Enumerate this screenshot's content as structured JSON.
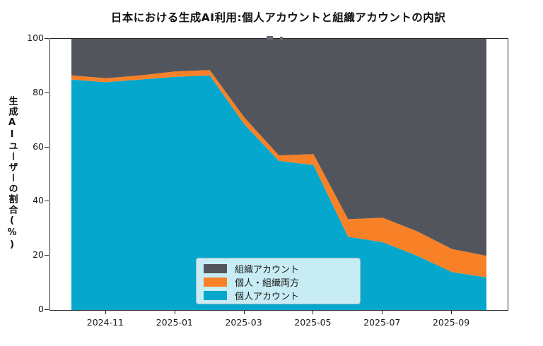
{
  "title": "日本における生成AI利用:個人アカウントと組織アカウントの内訳",
  "chart_data": {
    "type": "area",
    "stacked": true,
    "title": "日本における生成AI利用:個人アカウントと組織アカウントの内訳",
    "xlabel": "",
    "ylabel": "生成AIユーザーの割合(%)",
    "x": [
      "2024-10",
      "2024-11",
      "2024-12",
      "2025-01",
      "2025-02",
      "2025-03",
      "2025-04",
      "2025-05",
      "2025-06",
      "2025-07",
      "2025-08",
      "2025-09",
      "2025-10"
    ],
    "x_tick_labels": [
      "2024-11",
      "2025-01",
      "2025-03",
      "2025-05",
      "2025-07",
      "2025-09"
    ],
    "x_tick_indices": [
      1,
      3,
      5,
      7,
      9,
      11
    ],
    "y_ticks": [
      0,
      20,
      40,
      60,
      80,
      100
    ],
    "ylim": [
      0,
      100
    ],
    "grid": false,
    "legend_position": "lower-center",
    "series": [
      {
        "name": "個人アカウント",
        "color": "#06a7cd",
        "values": [
          85,
          84,
          85,
          86,
          86.5,
          68.5,
          55,
          53.5,
          27,
          25,
          20,
          14,
          12
        ]
      },
      {
        "name": "個人・組織両方",
        "color": "#f88127",
        "values": [
          1.5,
          1.5,
          1.5,
          2,
          2,
          2.5,
          2,
          4,
          6.5,
          9,
          9,
          8.5,
          8
        ]
      },
      {
        "name": "組織アカウント",
        "color": "#52565c",
        "values": [
          13.5,
          14.5,
          13.5,
          12,
          11.5,
          29,
          43,
          42.5,
          66.5,
          66,
          71,
          77.5,
          80
        ]
      }
    ],
    "legend_entries": [
      "組織アカウント",
      "個人・組織両方",
      "個人アカウント"
    ]
  }
}
